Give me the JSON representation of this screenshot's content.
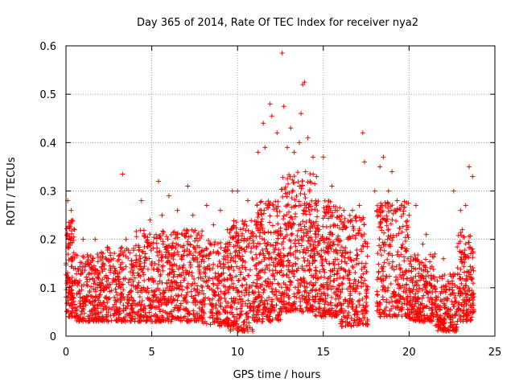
{
  "chart_data": {
    "type": "scatter",
    "title": "Day 365 of 2014, Rate Of TEC Index for receiver nya2",
    "xlabel": "GPS time / hours",
    "ylabel": "ROTI / TECUs",
    "xlim": [
      0,
      25
    ],
    "ylim": [
      0,
      0.6
    ],
    "xticks": [
      0,
      5,
      10,
      15,
      20,
      25
    ],
    "xtick_labels": [
      "0",
      "5",
      "10",
      "15",
      "20",
      "25"
    ],
    "yticks": [
      0,
      0.1,
      0.2,
      0.3,
      0.4,
      0.5,
      0.6
    ],
    "ytick_labels": [
      "0",
      "0.1",
      "0.2",
      "0.3",
      "0.4",
      "0.5",
      "0.6"
    ],
    "grid": true,
    "marker": "+",
    "color": "#ff0000",
    "series": [
      {
        "name": "ROTI",
        "points": [
          [
            0.1,
            0.28
          ],
          [
            0.3,
            0.26
          ],
          [
            0.5,
            0.22
          ],
          [
            1.0,
            0.2
          ],
          [
            1.7,
            0.2
          ],
          [
            2.2,
            0.15
          ],
          [
            3.3,
            0.335
          ],
          [
            3.5,
            0.2
          ],
          [
            4.4,
            0.28
          ],
          [
            4.9,
            0.24
          ],
          [
            5.4,
            0.32
          ],
          [
            5.6,
            0.25
          ],
          [
            6.0,
            0.29
          ],
          [
            6.5,
            0.26
          ],
          [
            7.1,
            0.31
          ],
          [
            7.4,
            0.25
          ],
          [
            8.2,
            0.27
          ],
          [
            8.6,
            0.23
          ],
          [
            9.0,
            0.26
          ],
          [
            9.4,
            0.22
          ],
          [
            9.7,
            0.3
          ],
          [
            10.0,
            0.3
          ],
          [
            10.6,
            0.28
          ],
          [
            11.2,
            0.38
          ],
          [
            11.5,
            0.44
          ],
          [
            11.6,
            0.39
          ],
          [
            11.9,
            0.48
          ],
          [
            12.0,
            0.455
          ],
          [
            12.3,
            0.42
          ],
          [
            12.6,
            0.585
          ],
          [
            12.7,
            0.475
          ],
          [
            12.9,
            0.39
          ],
          [
            13.1,
            0.43
          ],
          [
            13.3,
            0.38
          ],
          [
            13.6,
            0.4
          ],
          [
            13.7,
            0.46
          ],
          [
            13.8,
            0.52
          ],
          [
            13.9,
            0.525
          ],
          [
            14.1,
            0.41
          ],
          [
            14.4,
            0.37
          ],
          [
            14.6,
            0.33
          ],
          [
            15.0,
            0.37
          ],
          [
            15.5,
            0.31
          ],
          [
            16.2,
            0.26
          ],
          [
            16.7,
            0.26
          ],
          [
            17.1,
            0.27
          ],
          [
            17.3,
            0.42
          ],
          [
            17.4,
            0.36
          ],
          [
            18.0,
            0.3
          ],
          [
            18.3,
            0.35
          ],
          [
            18.5,
            0.37
          ],
          [
            18.8,
            0.3
          ],
          [
            19.0,
            0.34
          ],
          [
            19.3,
            0.28
          ],
          [
            20.0,
            0.25
          ],
          [
            20.4,
            0.27
          ],
          [
            20.8,
            0.19
          ],
          [
            21.0,
            0.21
          ],
          [
            21.5,
            0.17
          ],
          [
            22.0,
            0.16
          ],
          [
            22.6,
            0.3
          ],
          [
            23.0,
            0.26
          ],
          [
            23.3,
            0.27
          ],
          [
            23.5,
            0.35
          ],
          [
            23.7,
            0.33
          ]
        ]
      }
    ],
    "density_bands": [
      {
        "x": [
          0.0,
          0.5
        ],
        "lo": 0.04,
        "hi": 0.24,
        "n": 120
      },
      {
        "x": [
          0.5,
          2.0
        ],
        "lo": 0.03,
        "hi": 0.17,
        "n": 220
      },
      {
        "x": [
          2.0,
          4.0
        ],
        "lo": 0.03,
        "hi": 0.19,
        "n": 280
      },
      {
        "x": [
          4.0,
          6.0
        ],
        "lo": 0.03,
        "hi": 0.22,
        "n": 300
      },
      {
        "x": [
          6.0,
          8.0
        ],
        "lo": 0.03,
        "hi": 0.22,
        "n": 300
      },
      {
        "x": [
          8.0,
          9.5
        ],
        "lo": 0.02,
        "hi": 0.2,
        "n": 200
      },
      {
        "x": [
          9.5,
          11.0
        ],
        "lo": 0.01,
        "hi": 0.24,
        "n": 250
      },
      {
        "x": [
          11.0,
          12.5
        ],
        "lo": 0.03,
        "hi": 0.28,
        "n": 280
      },
      {
        "x": [
          12.5,
          14.5
        ],
        "lo": 0.05,
        "hi": 0.34,
        "n": 380
      },
      {
        "x": [
          14.5,
          16.0
        ],
        "lo": 0.04,
        "hi": 0.28,
        "n": 280
      },
      {
        "x": [
          16.0,
          17.6
        ],
        "lo": 0.02,
        "hi": 0.25,
        "n": 250
      },
      {
        "x": [
          18.1,
          20.0
        ],
        "lo": 0.04,
        "hi": 0.28,
        "n": 280
      },
      {
        "x": [
          20.0,
          21.5
        ],
        "lo": 0.03,
        "hi": 0.17,
        "n": 220
      },
      {
        "x": [
          21.5,
          22.8
        ],
        "lo": 0.01,
        "hi": 0.13,
        "n": 180
      },
      {
        "x": [
          22.8,
          23.8
        ],
        "lo": 0.03,
        "hi": 0.22,
        "n": 170
      }
    ]
  }
}
